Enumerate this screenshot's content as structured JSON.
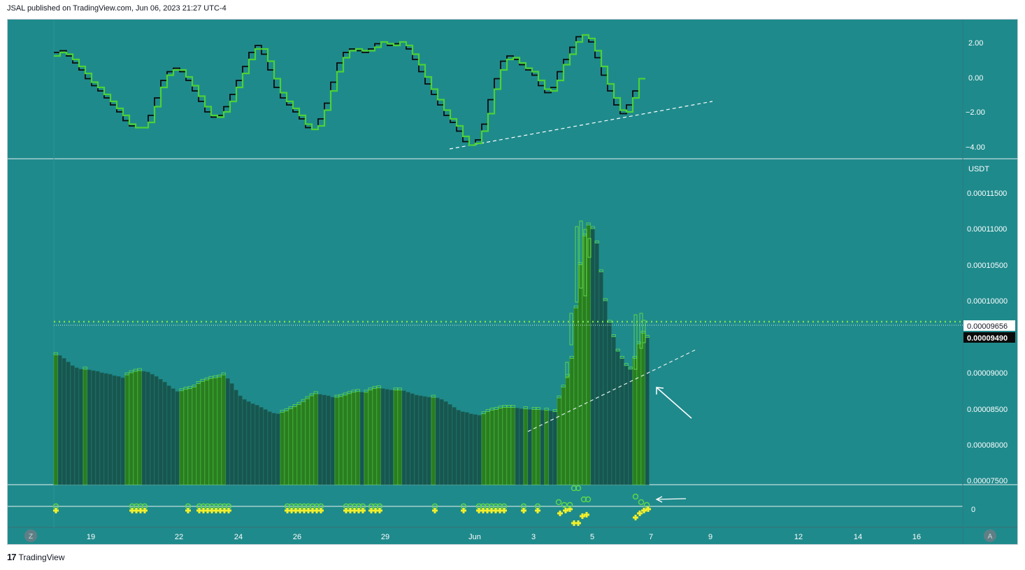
{
  "header": {
    "publisher": "JSAL published on TradingView.com, Jun 06, 2023 21:27 UTC-4"
  },
  "footer": {
    "brand": "TradingView"
  },
  "colors": {
    "background": "#1f8a8c",
    "bar_up": "#2a7d1f",
    "bar_edge": "#5ed64a",
    "bar_down": "#17564f",
    "osc_green": "#4cd137",
    "osc_black": "#0b0b0b",
    "marker_yellow": "#f3ef2b",
    "marker_green": "#5ed64a",
    "dotted_level": "#7ee04a"
  },
  "buttons": {
    "left": "Z",
    "right": "A"
  },
  "top_axis": {
    "ticks": [
      "2.00",
      "0.00",
      "−2.00",
      "−4.00"
    ]
  },
  "price_axis": {
    "currency": "USDT",
    "ticks": [
      "0.00011500",
      "0.00011000",
      "0.00010500",
      "0.00010000",
      "0.00009000",
      "0.00008500",
      "0.00008000",
      "0.00007500"
    ],
    "label_level": "0.00009656",
    "label_last": "0.00009490"
  },
  "bottom_axis": {
    "ticks": [
      "0"
    ]
  },
  "time_axis": {
    "ticks": [
      "19",
      "22",
      "24",
      "26",
      "29",
      "Jun",
      "3",
      "5",
      "7",
      "9",
      "12",
      "14",
      "16"
    ]
  },
  "chart_data": [
    {
      "type": "line",
      "title": "",
      "ylim": [
        -4.5,
        3
      ],
      "grid": false,
      "series": [
        {
          "values": [
            1.4,
            1.5,
            1.2,
            0.8,
            0.4,
            -0.1,
            -0.5,
            -0.8,
            -1.2,
            -1.6,
            -2.0,
            -2.5,
            -2.8,
            -2.9,
            -2.9,
            -2.2,
            -1.2,
            -0.2,
            0.3,
            0.5,
            0.3,
            -0.2,
            -0.8,
            -1.4,
            -2.0,
            -2.3,
            -2.2,
            -1.7,
            -1.0,
            -0.2,
            0.6,
            1.4,
            1.8,
            1.3,
            0.4,
            -0.6,
            -1.2,
            -1.6,
            -2.0,
            -2.4,
            -2.9,
            -3.0,
            -2.4,
            -1.5,
            -0.3,
            0.8,
            1.4,
            1.6,
            1.5,
            1.4,
            1.6,
            1.9,
            2.0,
            1.8,
            1.9,
            2.0,
            1.6,
            1.0,
            0.3,
            -0.4,
            -1.0,
            -1.6,
            -2.2,
            -2.6,
            -3.1,
            -3.7,
            -3.9,
            -3.6,
            -2.7,
            -1.3,
            -0.1,
            0.9,
            1.2,
            1.0,
            0.7,
            0.4,
            0.1,
            -0.5,
            -0.9,
            -0.6,
            0.3,
            1.0,
            1.7,
            2.3,
            2.4,
            2.0,
            1.1,
            0.1,
            -0.8,
            -1.6,
            -2.1,
            -1.6,
            -0.8
          ],
          "color": "#0b0b0b"
        },
        {
          "values": [
            1.2,
            1.4,
            1.3,
            1.0,
            0.6,
            0.2,
            -0.3,
            -0.6,
            -1.0,
            -1.4,
            -1.8,
            -2.2,
            -2.7,
            -2.9,
            -2.9,
            -2.6,
            -1.7,
            -0.6,
            0.1,
            0.4,
            0.4,
            0.0,
            -0.5,
            -1.1,
            -1.7,
            -2.2,
            -2.3,
            -2.0,
            -1.4,
            -0.6,
            0.2,
            1.0,
            1.6,
            1.6,
            0.9,
            -0.1,
            -0.9,
            -1.4,
            -1.8,
            -2.2,
            -2.7,
            -3.0,
            -2.8,
            -1.9,
            -0.8,
            0.3,
            1.1,
            1.5,
            1.6,
            1.5,
            1.5,
            1.7,
            2.0,
            1.9,
            1.8,
            2.0,
            1.8,
            1.3,
            0.7,
            0.0,
            -0.7,
            -1.3,
            -1.9,
            -2.4,
            -2.8,
            -3.4,
            -3.9,
            -3.8,
            -3.1,
            -2.1,
            -0.7,
            0.4,
            1.0,
            1.1,
            0.8,
            0.5,
            0.3,
            -0.2,
            -0.7,
            -0.8,
            -0.2,
            0.7,
            1.3,
            2.0,
            2.4,
            2.2,
            1.5,
            0.6,
            -0.4,
            -1.2,
            -1.9,
            -2.0,
            -1.2,
            -0.1
          ],
          "color": "#4cd137"
        }
      ]
    },
    {
      "type": "bar",
      "title": "",
      "ylim": [
        7.4e-05,
        0.000118
      ],
      "grid": false,
      "values": [
        9.25e-05,
        9.24e-05,
        9.2e-05,
        9.15e-05,
        9.1e-05,
        9.07e-05,
        9.05e-05,
        9.05e-05,
        9.04e-05,
        9.03e-05,
        9.02e-05,
        9e-05,
        8.99e-05,
        8.98e-05,
        8.96e-05,
        8.95e-05,
        8.93e-05,
        8.97e-05,
        9e-05,
        9.02e-05,
        9.03e-05,
        9.02e-05,
        9.01e-05,
        8.98e-05,
        8.95e-05,
        8.91e-05,
        8.87e-05,
        8.82e-05,
        8.78e-05,
        8.74e-05,
        8.75e-05,
        8.77e-05,
        8.78e-05,
        8.8e-05,
        8.85e-05,
        8.88e-05,
        8.9e-05,
        8.92e-05,
        8.93e-05,
        8.94e-05,
        8.97e-05,
        8.92e-05,
        8.85e-05,
        8.76e-05,
        8.68e-05,
        8.63e-05,
        8.6e-05,
        8.57e-05,
        8.55e-05,
        8.52e-05,
        8.49e-05,
        8.46e-05,
        8.44e-05,
        8.43e-05,
        8.45e-05,
        8.47e-05,
        8.5e-05,
        8.53e-05,
        8.56e-05,
        8.6e-05,
        8.64e-05,
        8.68e-05,
        8.71e-05,
        8.7e-05,
        8.69e-05,
        8.68e-05,
        8.66e-05,
        8.66e-05,
        8.67e-05,
        8.69e-05,
        8.71e-05,
        8.73e-05,
        8.74e-05,
        8.73e-05,
        8.73e-05,
        8.76e-05,
        8.78e-05,
        8.79e-05,
        8.78e-05,
        8.77e-05,
        8.76e-05,
        8.76e-05,
        8.76e-05,
        8.75e-05,
        8.73e-05,
        8.71e-05,
        8.69e-05,
        8.68e-05,
        8.67e-05,
        8.66e-05,
        8.66e-05,
        8.65e-05,
        8.63e-05,
        8.6e-05,
        8.56e-05,
        8.52e-05,
        8.48e-05,
        8.46e-05,
        8.45e-05,
        8.43e-05,
        8.42e-05,
        8.41e-05,
        8.43e-05,
        8.46e-05,
        8.48e-05,
        8.49e-05,
        8.51e-05,
        8.52e-05,
        8.52e-05,
        8.52e-05,
        8.51e-05,
        8.5e-05,
        8.5e-05,
        8.49e-05,
        8.49e-05,
        8.49e-05,
        8.48e-05,
        8.48e-05,
        8.47e-05,
        8.46e-05,
        8.65e-05,
        8.8e-05,
        8.95e-05,
        9.2e-05,
        9.9e-05,
        0.000105,
        0.000109,
        0.0001105,
        0.00011,
        0.000108,
        0.000104,
        0.0001,
        9.7e-05,
        9.5e-05,
        9.3e-05,
        9.2e-05,
        9.1e-05,
        9.05e-05,
        9.2e-05,
        9.4e-05,
        9.55e-05,
        9.49e-05
      ]
    },
    {
      "type": "scatter",
      "title": "",
      "note_markers": "signal markers: plus shapes (yellow) and circles (green)"
    }
  ],
  "price_annotations": {
    "dotted_level": 9.656e-05,
    "last_price": 9.49e-05
  }
}
